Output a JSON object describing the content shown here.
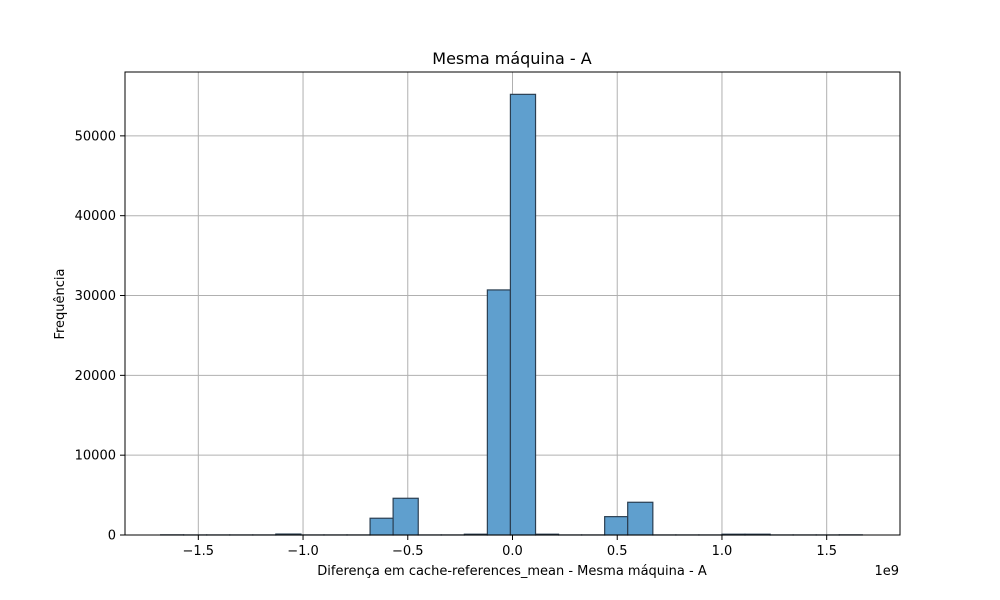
{
  "chart_data": {
    "type": "bar",
    "title": "Mesma máquina - A",
    "xlabel": "Diferença em cache-references_mean - Mesma máquina - A",
    "ylabel": "Frequência",
    "x_offset_label": "1e9",
    "xlim": [
      -1.85,
      1.85
    ],
    "ylim": [
      0,
      58000
    ],
    "grid": true,
    "bar_color": "#5f9fce",
    "edge_color": "#2b3f52",
    "x_ticks": [
      {
        "value": -1.5,
        "label": "−1.5"
      },
      {
        "value": -1.0,
        "label": "−1.0"
      },
      {
        "value": -0.5,
        "label": "−0.5"
      },
      {
        "value": 0.0,
        "label": "0.0"
      },
      {
        "value": 0.5,
        "label": "0.5"
      },
      {
        "value": 1.0,
        "label": "1.0"
      },
      {
        "value": 1.5,
        "label": "1.5"
      }
    ],
    "y_ticks": [
      {
        "value": 0,
        "label": "0"
      },
      {
        "value": 10000,
        "label": "10000"
      },
      {
        "value": 20000,
        "label": "20000"
      },
      {
        "value": 30000,
        "label": "30000"
      },
      {
        "value": 40000,
        "label": "40000"
      },
      {
        "value": 50000,
        "label": "50000"
      }
    ],
    "bins": [
      {
        "x0": -1.68,
        "x1": -1.57,
        "count": 20
      },
      {
        "x0": -1.57,
        "x1": -1.46,
        "count": 10
      },
      {
        "x0": -1.46,
        "x1": -1.35,
        "count": 10
      },
      {
        "x0": -1.35,
        "x1": -1.24,
        "count": 10
      },
      {
        "x0": -1.24,
        "x1": -1.13,
        "count": 10
      },
      {
        "x0": -1.13,
        "x1": -1.01,
        "count": 120
      },
      {
        "x0": -1.01,
        "x1": -0.9,
        "count": 10
      },
      {
        "x0": -0.9,
        "x1": -0.79,
        "count": 10
      },
      {
        "x0": -0.79,
        "x1": -0.68,
        "count": 10
      },
      {
        "x0": -0.68,
        "x1": -0.57,
        "count": 2100
      },
      {
        "x0": -0.57,
        "x1": -0.45,
        "count": 4600
      },
      {
        "x0": -0.45,
        "x1": -0.34,
        "count": 10
      },
      {
        "x0": -0.34,
        "x1": -0.23,
        "count": 10
      },
      {
        "x0": -0.23,
        "x1": -0.12,
        "count": 100
      },
      {
        "x0": -0.12,
        "x1": -0.01,
        "count": 30700
      },
      {
        "x0": -0.01,
        "x1": 0.11,
        "count": 55200
      },
      {
        "x0": 0.11,
        "x1": 0.22,
        "count": 100
      },
      {
        "x0": 0.22,
        "x1": 0.33,
        "count": 10
      },
      {
        "x0": 0.33,
        "x1": 0.44,
        "count": 10
      },
      {
        "x0": 0.44,
        "x1": 0.55,
        "count": 2300
      },
      {
        "x0": 0.55,
        "x1": 0.67,
        "count": 4100
      },
      {
        "x0": 0.67,
        "x1": 0.78,
        "count": 10
      },
      {
        "x0": 0.78,
        "x1": 0.89,
        "count": 10
      },
      {
        "x0": 0.89,
        "x1": 1.0,
        "count": 10
      },
      {
        "x0": 1.0,
        "x1": 1.11,
        "count": 100
      },
      {
        "x0": 1.11,
        "x1": 1.23,
        "count": 100
      },
      {
        "x0": 1.23,
        "x1": 1.34,
        "count": 10
      },
      {
        "x0": 1.34,
        "x1": 1.45,
        "count": 10
      },
      {
        "x0": 1.45,
        "x1": 1.56,
        "count": 10
      },
      {
        "x0": 1.56,
        "x1": 1.67,
        "count": 20
      }
    ]
  }
}
